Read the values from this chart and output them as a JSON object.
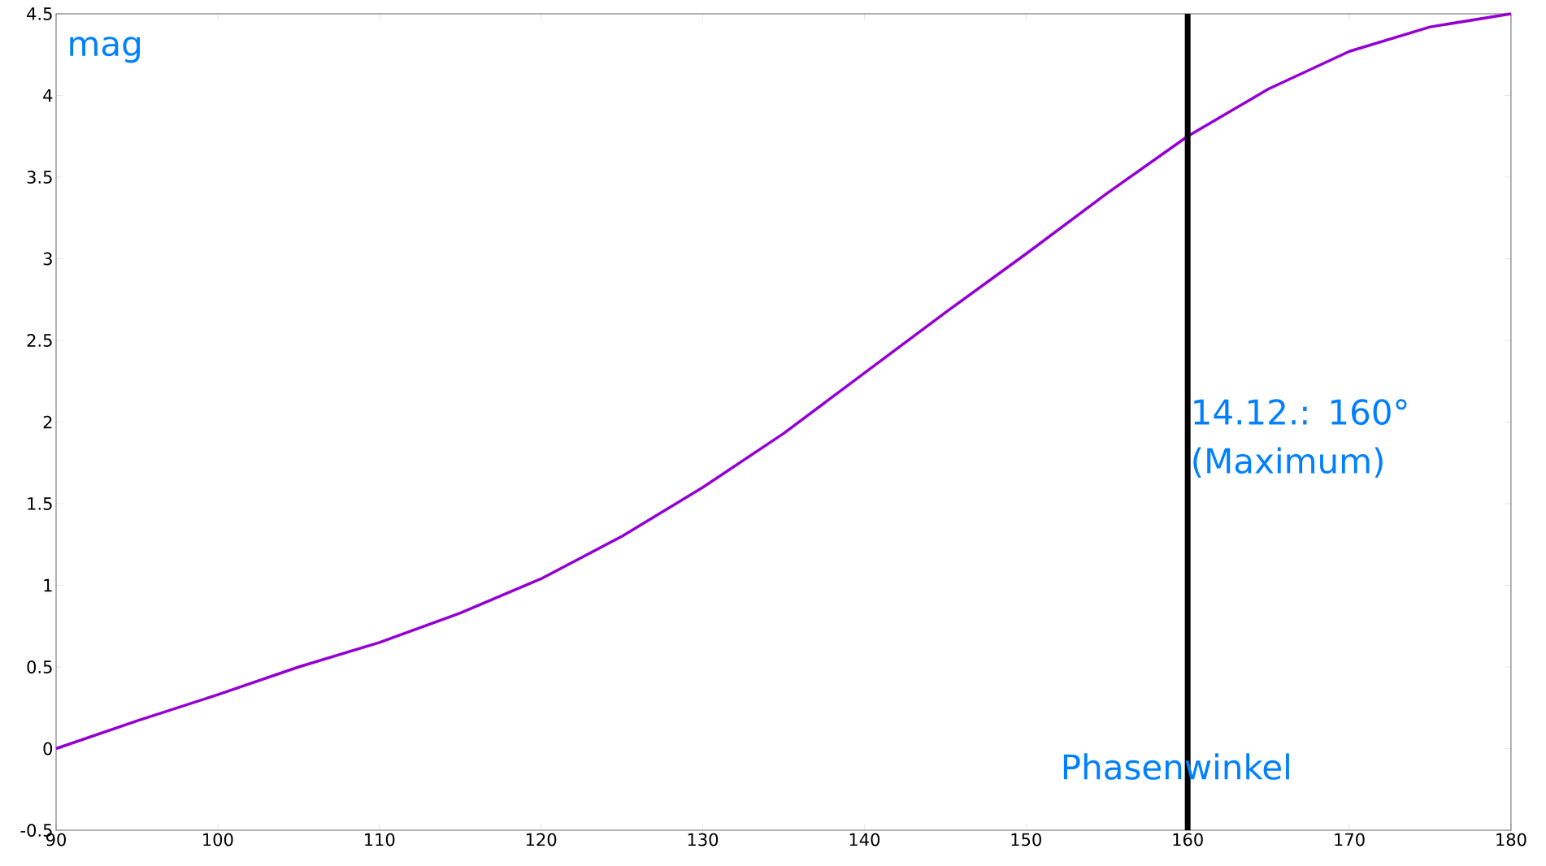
{
  "chart_data": {
    "type": "line",
    "xlabel": "Phasenwinkel",
    "ylabel": "mag",
    "x": [
      90,
      95,
      100,
      105,
      110,
      115,
      120,
      125,
      130,
      135,
      140,
      145,
      150,
      155,
      160,
      165,
      170,
      175,
      180
    ],
    "series": [
      {
        "color": "#9400d3",
        "values": [
          0,
          0.17,
          0.33,
          0.5,
          0.65,
          0.83,
          1.04,
          1.3,
          1.6,
          1.93,
          2.3,
          2.67,
          3.03,
          3.4,
          3.75,
          4.04,
          4.27,
          4.42,
          4.5
        ]
      }
    ],
    "xlim": [
      90,
      180
    ],
    "ylim": [
      -0.5,
      4.5
    ],
    "xticks": [
      90,
      100,
      110,
      120,
      130,
      140,
      150,
      160,
      170,
      180
    ],
    "yticks": [
      -0.5,
      0,
      0.5,
      1,
      1.5,
      2,
      2.5,
      3,
      3.5,
      4,
      4.5
    ],
    "ref_lines": [
      {
        "axis": "x",
        "value": 160,
        "label": "14.12.: 160° (Maximum)",
        "color": "#000000"
      }
    ],
    "grid": false,
    "marker": "none",
    "line_style": "solid"
  }
}
